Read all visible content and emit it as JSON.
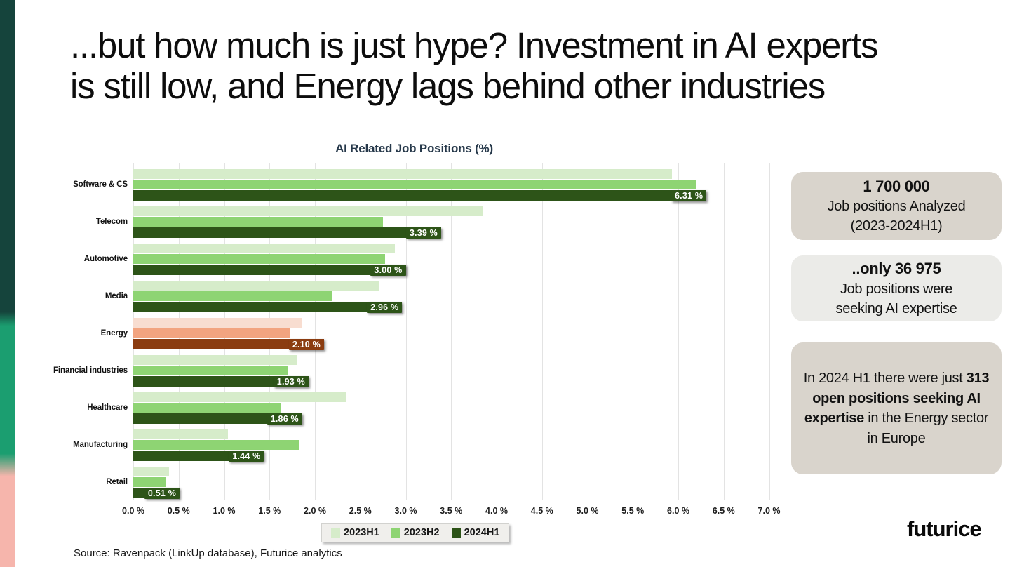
{
  "slide": {
    "title_line1": "...but how much is just hype? Investment in AI experts",
    "title_line2": "is still low, and Energy lags behind other industries",
    "source": "Source: Ravenpack (LinkUp database), Futurice analytics",
    "logo": "futurice"
  },
  "callouts": [
    {
      "bold": "1 700 000",
      "lines": [
        "Job positions Analyzed",
        "(2023-2024H1)"
      ],
      "bg": "#d9d4cc"
    },
    {
      "bold": "..only 36 975",
      "lines": [
        "Job positions were",
        "seeking AI expertise"
      ],
      "bg": "#ebebe8"
    },
    {
      "prefix": "In 2024 H1 there were just ",
      "bold": "313 open positions seeking AI expertise",
      "suffix": " in the Energy sector in Europe",
      "bg": "#d9d4cc"
    }
  ],
  "chart_data": {
    "type": "bar",
    "orientation": "horizontal",
    "title": "AI Related Job Positions (%)",
    "categories": [
      "Software & CS",
      "Telecom",
      "Automotive",
      "Media",
      "Energy",
      "Financial industries",
      "Healthcare",
      "Manufacturing",
      "Retail"
    ],
    "series": [
      {
        "name": "2023H1",
        "color": "#d6ecca",
        "energy_color": "#f8ddd0",
        "values": [
          5.93,
          3.85,
          2.88,
          2.7,
          1.85,
          1.81,
          2.34,
          1.04,
          0.39
        ]
      },
      {
        "name": "2023H2",
        "color": "#8ed473",
        "energy_color": "#f2a480",
        "values": [
          6.19,
          2.75,
          2.77,
          2.19,
          1.72,
          1.71,
          1.63,
          1.83,
          0.36
        ]
      },
      {
        "name": "2024H1",
        "color": "#2d5418",
        "energy_color": "#8b3c10",
        "values": [
          6.31,
          3.39,
          3.0,
          2.96,
          2.1,
          1.93,
          1.86,
          1.44,
          0.51
        ],
        "data_labels": [
          "6.31 %",
          "3.39 %",
          "3.00 %",
          "2.96 %",
          "2.10 %",
          "1.93 %",
          "1.86 %",
          "1.44 %",
          "0.51 %"
        ]
      }
    ],
    "xlim": [
      0,
      7
    ],
    "x_ticks": [
      "0.0 %",
      "0.5 %",
      "1.0 %",
      "1.5 %",
      "2.0 %",
      "2.5 %",
      "3.0 %",
      "3.5 %",
      "4.0 %",
      "4.5 %",
      "5.0 %",
      "5.5 %",
      "6.0 %",
      "6.5 %",
      "7.0 %"
    ],
    "grid": "vertical",
    "legend_position": "bottom",
    "highlight_category": "Energy"
  },
  "colors": {
    "stripe_teal": "#15443c",
    "stripe_green": "#1b9e70",
    "stripe_pink": "#f6b5ac",
    "chart_title": "#26384a"
  }
}
